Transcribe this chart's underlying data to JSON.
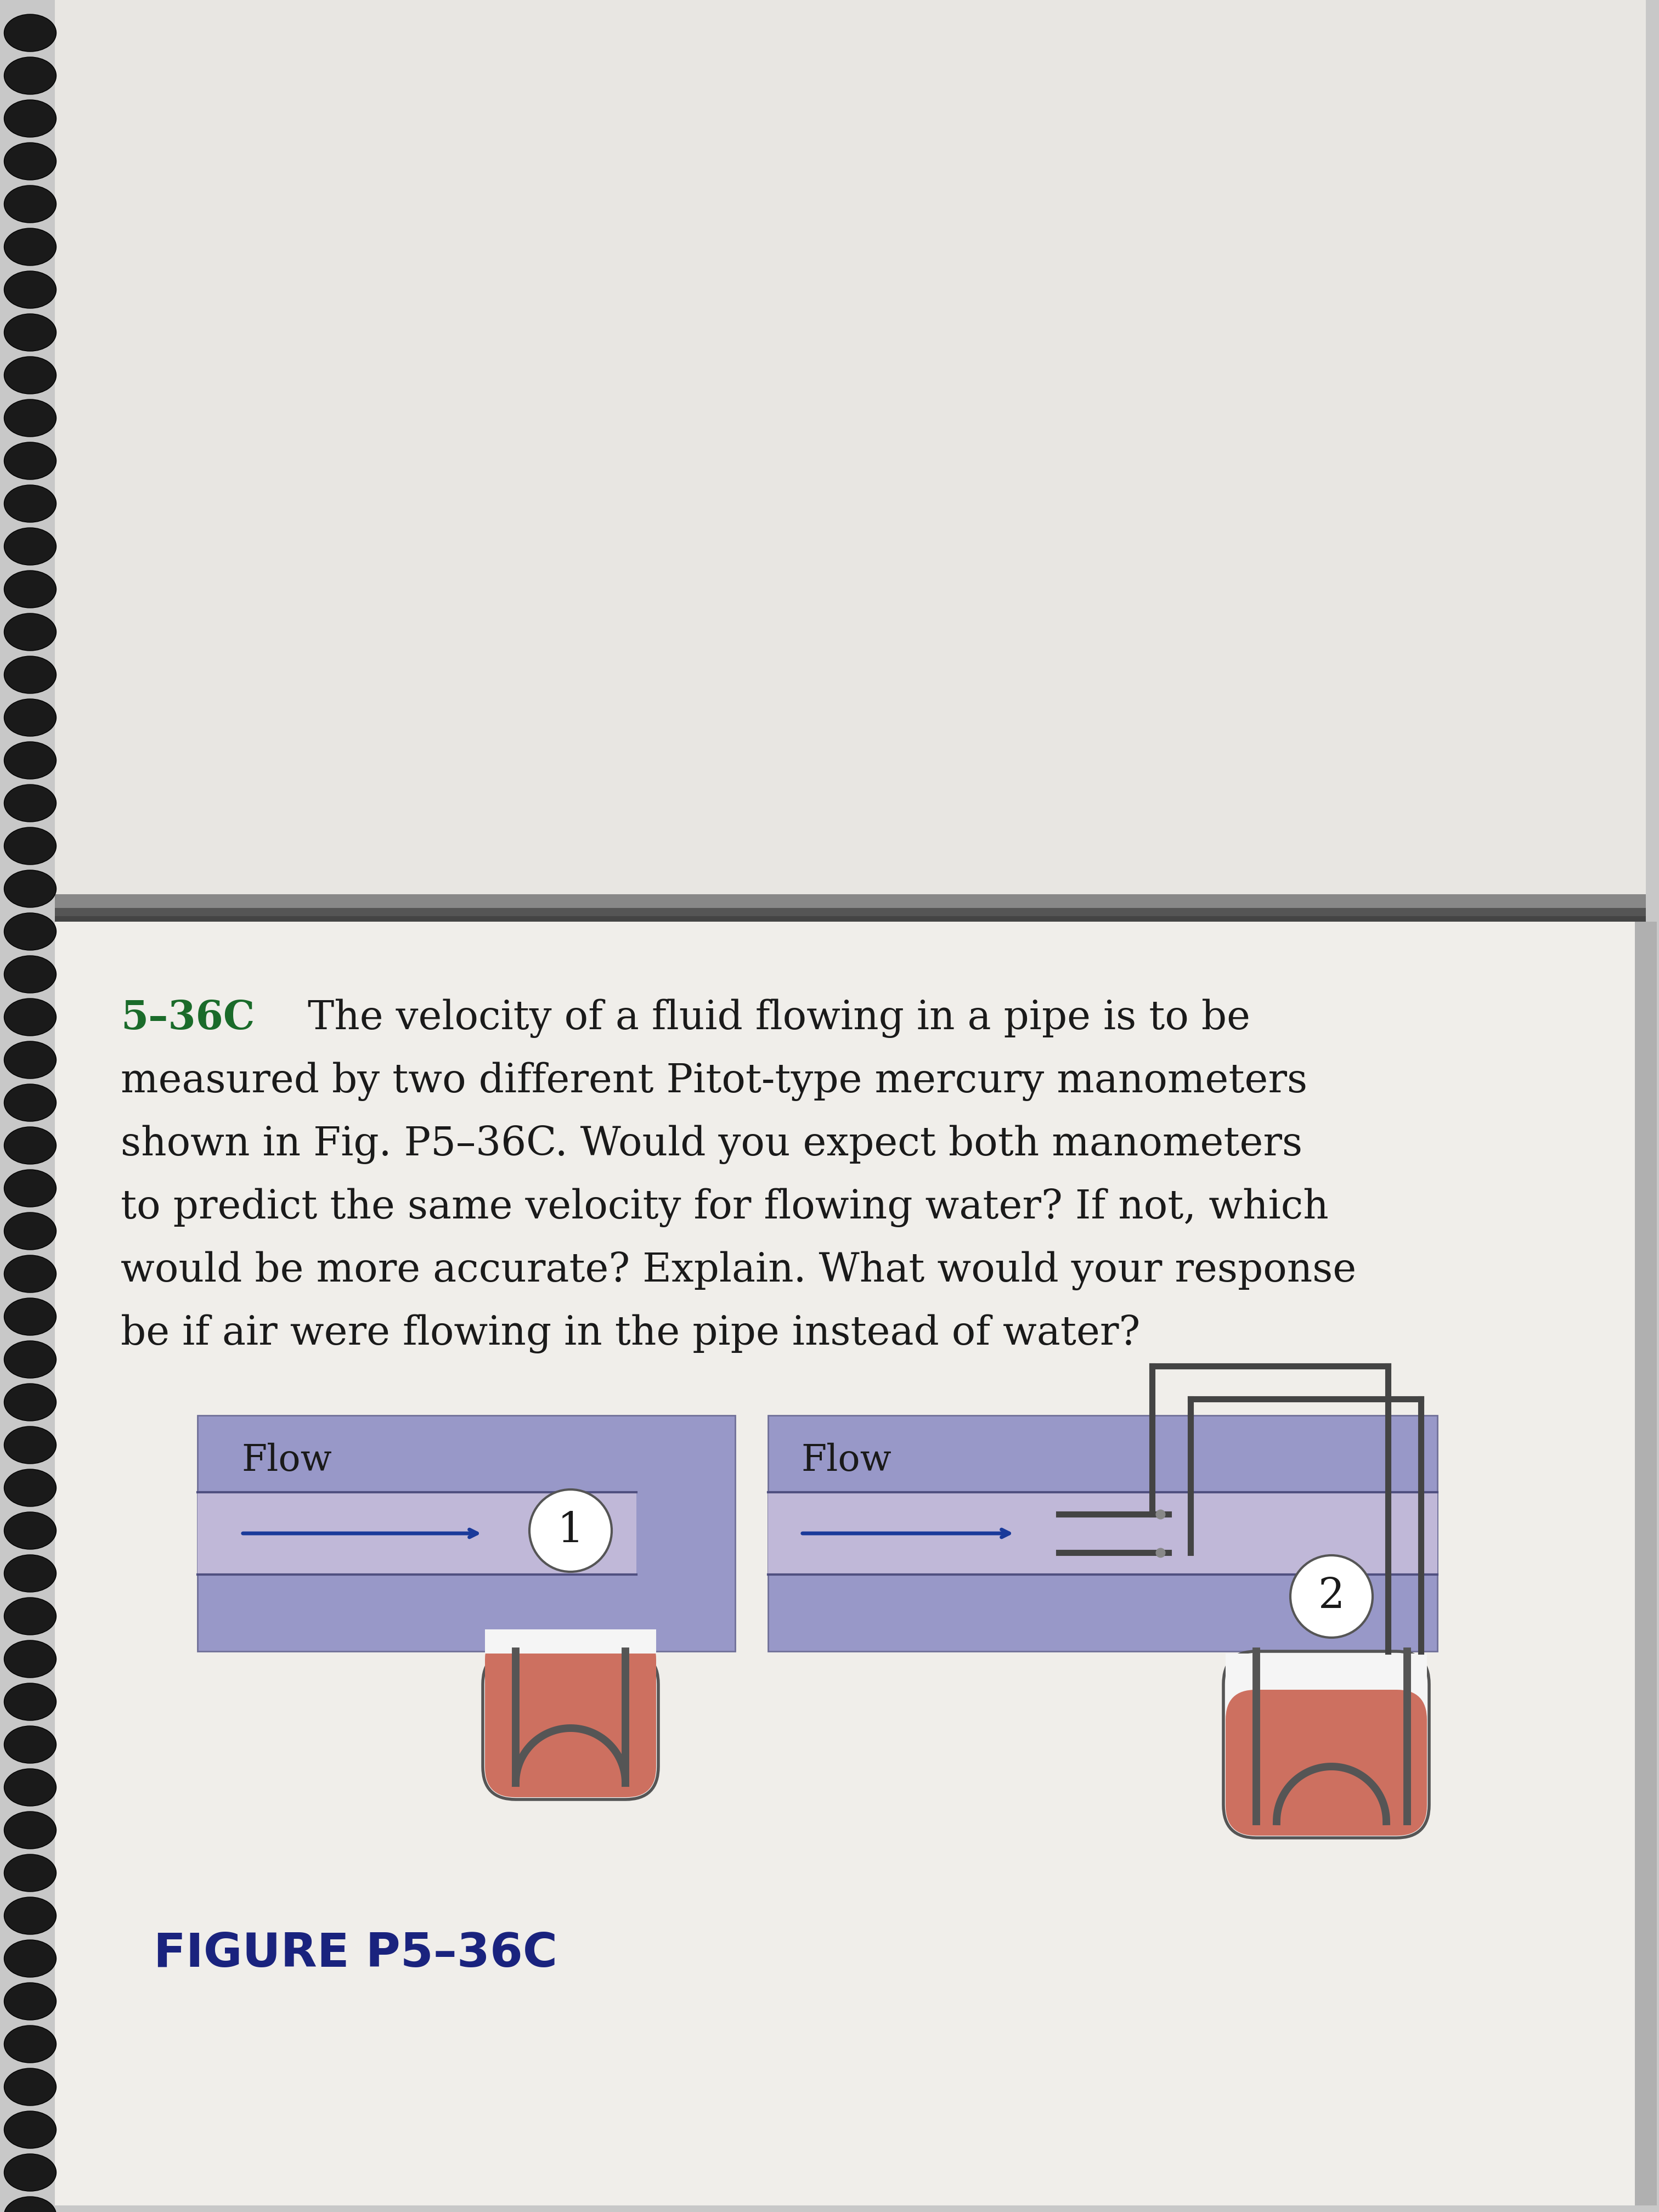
{
  "bg_color": "#c8c8c8",
  "upper_page_color": "#e8e6e2",
  "lower_page_color": "#f0eeea",
  "spiral_color": "#1a1a1a",
  "problem_number": "5–36C",
  "problem_number_color": "#1a6b2a",
  "text_color": "#1a1a1a",
  "figure_label": "FIGURE P5–36C",
  "figure_label_color": "#1a237e",
  "pipe_bg_color": "#9898c8",
  "pipe_stripe_color": "#b0b0d8",
  "pipe_dark_color": "#7878a8",
  "pipe_wall_color": "#505080",
  "flow_arrow_color": "#1a3a9a",
  "tube_line_color": "#333333",
  "mercury_color": "#cd7060",
  "container_bg": "#f5f5f5",
  "container_border": "#555555",
  "pitot_body_color": "#888888",
  "problem_lines": [
    [
      "5–36C",
      "  The velocity of a fluid flowing in a pipe is to be"
    ],
    [
      "",
      "measured by two different Pitot-type mercury manometers"
    ],
    [
      "",
      "shown in Fig. P5–36C. Would you expect both manometers"
    ],
    [
      "",
      "to predict the same velocity for flowing water? If not, which"
    ],
    [
      "",
      "would be more accurate? Explain. What would your response"
    ],
    [
      "",
      "be if air were flowing in the pipe instead of water?"
    ]
  ]
}
